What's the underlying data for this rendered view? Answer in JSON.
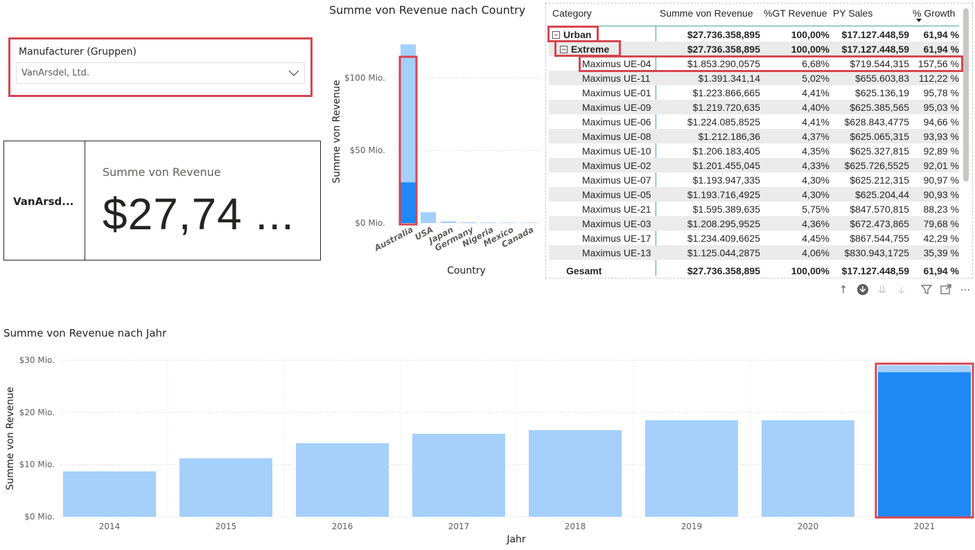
{
  "slicer": {
    "title": "Manufacturer (Gruppen)",
    "selected": "VanArsdel, Ltd."
  },
  "card": {
    "row_label": "VanArsd...",
    "measure_label": "Summe von Revenue",
    "measure_value": "$27,74 ..."
  },
  "country_chart": {
    "title": "Summe von Revenue nach Country",
    "chart_data": {
      "type": "bar",
      "title": "Summe von Revenue nach Country",
      "xlabel": "Country",
      "ylabel": "Summe von Revenue",
      "categories": [
        "Australia",
        "USA",
        "Japan",
        "Germany",
        "Nigeria",
        "Mexico",
        "Canada"
      ],
      "series": [
        {
          "values": [
            123,
            7.5,
            1.2,
            0.6,
            0.4,
            0.3,
            0.3
          ]
        },
        {
          "values": [
            28,
            0,
            0,
            0,
            0,
            0,
            0
          ]
        }
      ],
      "ylim": [
        0,
        125
      ],
      "yticks": [
        0,
        50,
        100
      ],
      "ytick_labels": [
        "$0 Mio.",
        "$50 Mio.",
        "$100 Mio."
      ],
      "colors": [
        "#a4d0fb",
        "#1e88f5"
      ],
      "grid": true
    }
  },
  "matrix": {
    "headers": [
      "Category",
      "Summe von Revenue",
      "%GT Revenue",
      "PY Sales",
      "% Growth"
    ],
    "level1": {
      "label": "Urban",
      "revenue": "$27.736.358,895",
      "gt": "100,00%",
      "py": "$17.127.448,59",
      "growth": "61,94 %"
    },
    "level2": {
      "label": "Extreme",
      "revenue": "$27.736.358,895",
      "gt": "100,00%",
      "py": "$17.127.448,59",
      "growth": "61,94 %"
    },
    "rows": [
      {
        "label": "Maximus UE-04",
        "revenue": "$1.853.290,0575",
        "gt": "6,68%",
        "py": "$719.544,315",
        "growth": "157,56 %"
      },
      {
        "label": "Maximus UE-11",
        "revenue": "$1.391.341,14",
        "gt": "5,02%",
        "py": "$655.603,83",
        "growth": "112,22 %"
      },
      {
        "label": "Maximus UE-01",
        "revenue": "$1.223.866,665",
        "gt": "4,41%",
        "py": "$625.136,19",
        "growth": "95,78 %"
      },
      {
        "label": "Maximus UE-09",
        "revenue": "$1.219.720,635",
        "gt": "4,40%",
        "py": "$625.385,565",
        "growth": "95,03 %"
      },
      {
        "label": "Maximus UE-06",
        "revenue": "$1.224.085,8525",
        "gt": "4,41%",
        "py": "$628.843,4775",
        "growth": "94,66 %"
      },
      {
        "label": "Maximus UE-08",
        "revenue": "$1.212.186,36",
        "gt": "4,37%",
        "py": "$625.065,315",
        "growth": "93,93 %"
      },
      {
        "label": "Maximus UE-10",
        "revenue": "$1.206.183,405",
        "gt": "4,35%",
        "py": "$625.327,815",
        "growth": "92,89 %"
      },
      {
        "label": "Maximus UE-02",
        "revenue": "$1.201.455,045",
        "gt": "4,33%",
        "py": "$625.726,5525",
        "growth": "92,01 %"
      },
      {
        "label": "Maximus UE-07",
        "revenue": "$1.193.947,335",
        "gt": "4,30%",
        "py": "$625.212,315",
        "growth": "90,97 %"
      },
      {
        "label": "Maximus UE-05",
        "revenue": "$1.193.716,4925",
        "gt": "4,30%",
        "py": "$625.204,44",
        "growth": "90,93 %"
      },
      {
        "label": "Maximus UE-21",
        "revenue": "$1.595.389,635",
        "gt": "5,75%",
        "py": "$847.570,815",
        "growth": "88,23 %"
      },
      {
        "label": "Maximus UE-03",
        "revenue": "$1.208.295,9525",
        "gt": "4,36%",
        "py": "$672.473,865",
        "growth": "79,68 %"
      },
      {
        "label": "Maximus UE-17",
        "revenue": "$1.234.409,6625",
        "gt": "4,45%",
        "py": "$867.544,755",
        "growth": "42,29 %"
      },
      {
        "label": "Maximus UE-13",
        "revenue": "$1.125.044,2875",
        "gt": "4,06%",
        "py": "$830.943,1725",
        "growth": "35,39 %"
      }
    ],
    "total": {
      "label": "Gesamt",
      "revenue": "$27.736.358,895",
      "gt": "100,00%",
      "py": "$17.127.448,59",
      "growth": "61,94 %"
    },
    "sorted_column": "% Growth",
    "toolbar_icons": [
      "drill-up-icon",
      "drill-down-icon",
      "expand-next-level-icon",
      "expand-all-icon",
      "filter-icon",
      "focus-mode-icon",
      "more-options-icon"
    ]
  },
  "year_chart": {
    "title": "Summe von Revenue nach Jahr",
    "chart_data": {
      "type": "bar",
      "title": "Summe von Revenue nach Jahr",
      "xlabel": "Jahr",
      "ylabel": "Summe von Revenue",
      "categories": [
        "2014",
        "2015",
        "2016",
        "2017",
        "2018",
        "2019",
        "2020",
        "2021"
      ],
      "series": [
        {
          "values": [
            8.7,
            11.2,
            14.1,
            15.9,
            16.6,
            18.5,
            18.5,
            29.0
          ]
        },
        {
          "values": [
            0,
            0,
            0,
            0,
            0,
            0,
            0,
            27.7
          ]
        }
      ],
      "ylim": [
        0,
        30
      ],
      "yticks": [
        0,
        10,
        20,
        30
      ],
      "ytick_labels": [
        "$0 Mio.",
        "$10 Mio.",
        "$20 Mio.",
        "$30 Mio."
      ],
      "colors": [
        "#a4d0fb",
        "#1e88f5"
      ],
      "grid": true
    }
  }
}
